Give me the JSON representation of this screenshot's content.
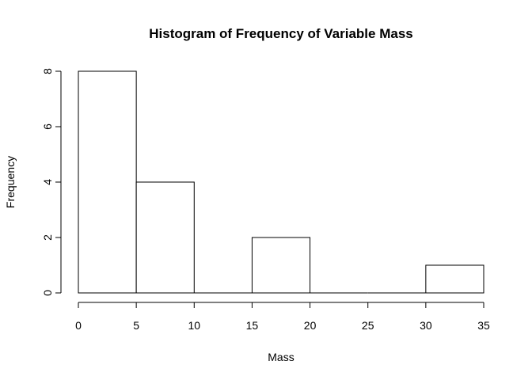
{
  "chart_data": {
    "type": "bar",
    "title": "Histogram of Frequency of Variable Mass",
    "xlabel": "Mass",
    "ylabel": "Frequency",
    "bins": [
      {
        "start": 0,
        "end": 5,
        "count": 8
      },
      {
        "start": 5,
        "end": 10,
        "count": 4
      },
      {
        "start": 10,
        "end": 15,
        "count": 0
      },
      {
        "start": 15,
        "end": 20,
        "count": 2
      },
      {
        "start": 20,
        "end": 25,
        "count": 0
      },
      {
        "start": 25,
        "end": 30,
        "count": 0
      },
      {
        "start": 30,
        "end": 35,
        "count": 1
      }
    ],
    "xlim": [
      0,
      35
    ],
    "ylim": [
      0,
      8
    ],
    "x_ticks": [
      0,
      5,
      10,
      15,
      20,
      25,
      30,
      35
    ],
    "y_ticks": [
      0,
      2,
      4,
      6,
      8
    ],
    "grid": false,
    "legend": "none"
  }
}
